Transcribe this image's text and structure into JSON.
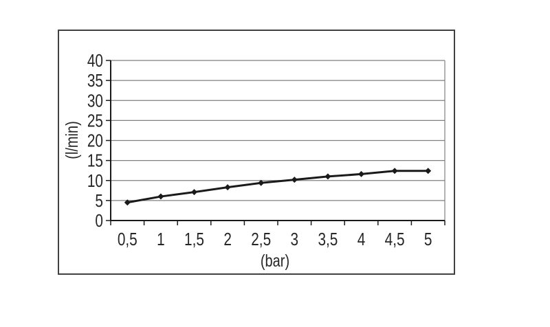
{
  "chart_data": {
    "type": "line",
    "title": "",
    "xlabel": "(bar)",
    "ylabel": "(l/min)",
    "categories": [
      "0,5",
      "1",
      "1,5",
      "2",
      "2,5",
      "3",
      "3,5",
      "4",
      "4,5",
      "5"
    ],
    "x_values": [
      0.5,
      1,
      1.5,
      2,
      2.5,
      3,
      3.5,
      4,
      4.5,
      5
    ],
    "series": [
      {
        "name": "flow-rate-l-per-min",
        "values": [
          4.5,
          6.0,
          7.1,
          8.3,
          9.4,
          10.2,
          11.0,
          11.6,
          12.4,
          12.4
        ]
      }
    ],
    "ylim": [
      0,
      40
    ],
    "y_ticks": [
      0,
      5,
      10,
      15,
      20,
      25,
      30,
      35,
      40
    ],
    "y_tick_labels": [
      "0",
      "5",
      "10",
      "15",
      "20",
      "25",
      "30",
      "35",
      "40"
    ],
    "grid": true,
    "legend": false,
    "marker": "diamond",
    "colors": {
      "line": "#1a1a1a",
      "marker": "#1a1a1a",
      "gridline": "#7f7f7f",
      "axis": "#1a1a1a",
      "tick": "#1a1a1a",
      "text": "#262626",
      "chart_border": "#404040",
      "background": "#ffffff"
    }
  }
}
